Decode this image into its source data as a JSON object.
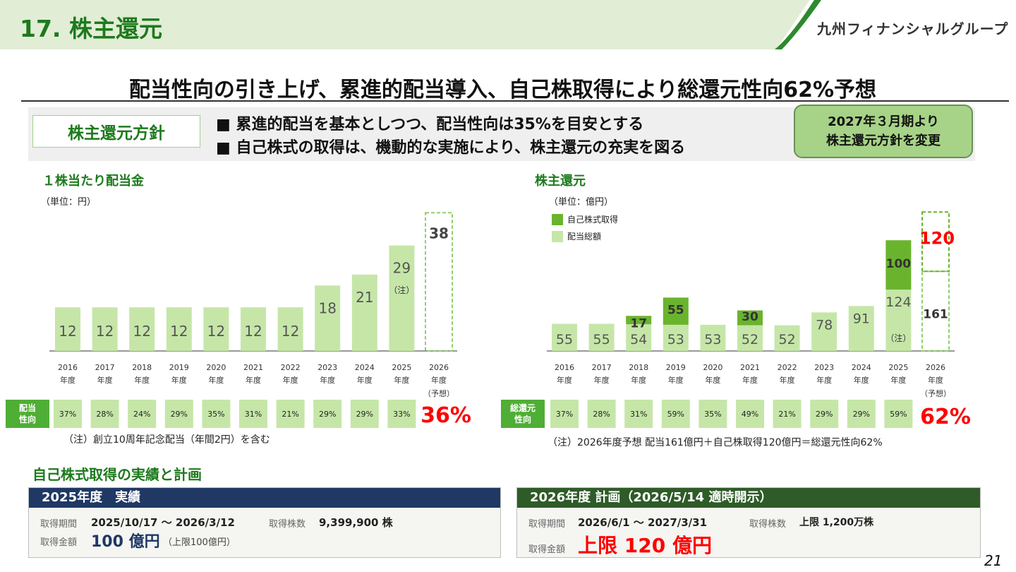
{
  "header": {
    "title": "17.  株主還元",
    "logo": "九州フィナンシャルグループ"
  },
  "headline": "配当性向の引き上げ、累進的配当導入、自己株取得により総還元性向62%予想",
  "policy": {
    "label": "株主還元方針",
    "bullets": [
      "■ 累進的配当を基本としつつ、配当性向は35%を目安とする",
      "■ 自己株式の取得は、機動的な実施により、株主還元の充実を図る"
    ],
    "change_line1": "2027年３月期より",
    "change_line2": "株主還元方針を変更"
  },
  "chart_data": [
    {
      "type": "bar",
      "title": "１株当たり配当金",
      "unit": "（単位：円）",
      "categories": [
        "2016",
        "2017",
        "2018",
        "2019",
        "2020",
        "2021",
        "2022",
        "2023",
        "2024",
        "2025",
        "2026"
      ],
      "category_suffix": "年度",
      "forecast_label": "（予想）",
      "values": [
        12,
        12,
        12,
        12,
        12,
        12,
        12,
        18,
        21,
        29,
        38
      ],
      "forecast_index": 10,
      "annotation": "（注）",
      "ratio_label_line1": "配当",
      "ratio_label_line2": "性向",
      "ratios": [
        "37%",
        "28%",
        "24%",
        "29%",
        "35%",
        "31%",
        "21%",
        "29%",
        "29%",
        "33%"
      ],
      "forecast_ratio": "36%",
      "note": "（注）創立10周年記念配当（年間2円）を含む",
      "colors": {
        "bar": "#c6e6a8",
        "forecast_border": "#8fcf6c",
        "ratio_box": "#c6e6a8",
        "ratio_label": "#4fae35",
        "forecast_ratio": "#ff0000"
      }
    },
    {
      "type": "bar",
      "stacked": true,
      "title": "株主還元",
      "unit": "（単位：億円）",
      "legend": [
        "自己株式取得",
        "配当総額"
      ],
      "categories": [
        "2016",
        "2017",
        "2018",
        "2019",
        "2020",
        "2021",
        "2022",
        "2023",
        "2024",
        "2025",
        "2026"
      ],
      "category_suffix": "年度",
      "forecast_label": "（予想）",
      "series": [
        {
          "name": "配当総額",
          "values": [
            55,
            55,
            54,
            53,
            53,
            52,
            52,
            78,
            91,
            124,
            161
          ]
        },
        {
          "name": "自己株式取得",
          "values": [
            0,
            0,
            17,
            55,
            0,
            30,
            0,
            0,
            0,
            100,
            120
          ]
        }
      ],
      "forecast_index": 10,
      "annotation": "（注）",
      "ratio_label_line1": "総還元",
      "ratio_label_line2": "性向",
      "ratios": [
        "37%",
        "28%",
        "31%",
        "59%",
        "35%",
        "49%",
        "21%",
        "29%",
        "29%",
        "59%"
      ],
      "forecast_ratio": "62%",
      "note": "（注）2026年度予想 配当161億円＋自己株取得120億円＝総還元性向62%",
      "colors": {
        "dividend": "#c6e6a8",
        "buyback": "#6ab42d",
        "forecast_border": "#8fcf6c",
        "forecast_buyback_label": "#ff0000",
        "ratio_box": "#c6e6a8",
        "ratio_label": "#4fae35",
        "forecast_ratio": "#ff0000"
      }
    }
  ],
  "buyback": {
    "title": "自己株式取得の実績と計画",
    "actual": {
      "header": "2025年度　実績",
      "period_label": "取得期間",
      "period": "2025/10/17 ～ 2026/3/12",
      "shares_label": "取得株数",
      "shares": "9,399,900 株",
      "amount_label": "取得金額",
      "amount": "100 億円",
      "amount_note": "（上限100億円）"
    },
    "plan": {
      "header": "2026年度  計画（2026/5/14 適時開示）",
      "period_label": "取得期間",
      "period": "2026/6/1 ～ 2027/3/31",
      "shares_label": "取得株数",
      "shares": "上限 1,200万株",
      "amount_label": "取得金額",
      "amount": "上限 120 億円"
    },
    "colors": {
      "actual_header": "#1f3864",
      "plan_header": "#2e5b27",
      "actual_amount": "#1f3864",
      "plan_amount": "#ff0000"
    }
  },
  "page_number": "21"
}
